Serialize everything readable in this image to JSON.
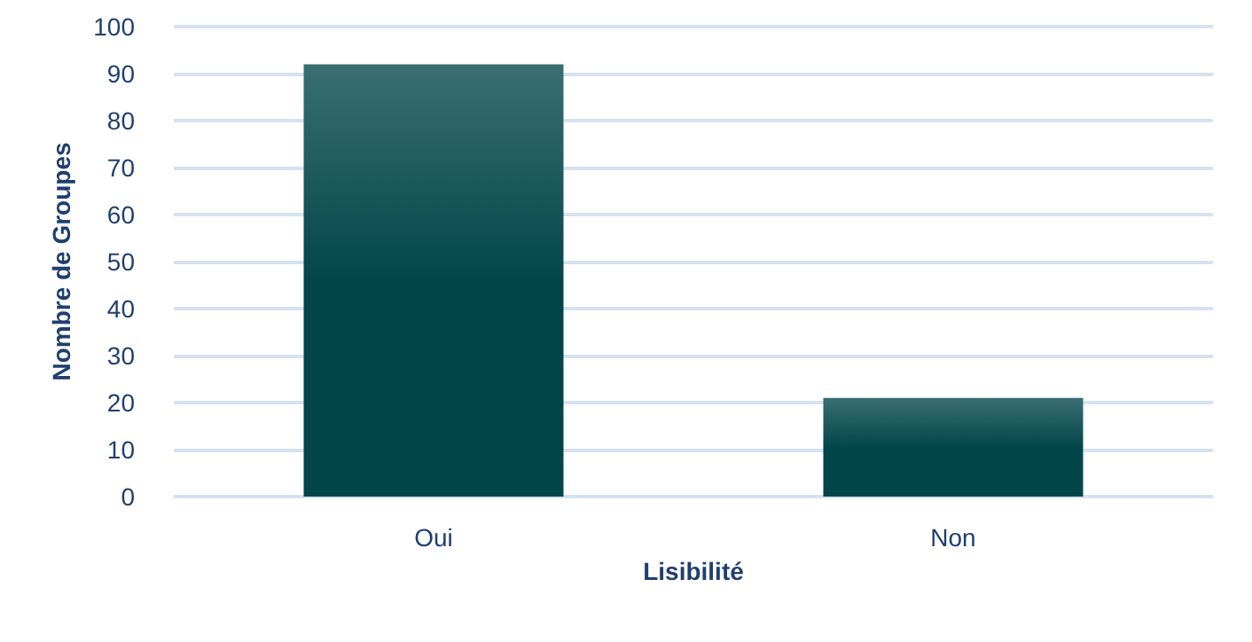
{
  "chart_data": {
    "type": "bar",
    "xlabel": "Lisibilité",
    "ylabel": "Nombre de Groupes",
    "categories": [
      "Oui",
      "Non"
    ],
    "values": [
      92,
      21
    ],
    "color": "#03464a",
    "ylim": [
      0,
      100
    ],
    "yticks": [
      0,
      10,
      20,
      30,
      40,
      50,
      60,
      70,
      80,
      90,
      100
    ],
    "grid": "y"
  }
}
